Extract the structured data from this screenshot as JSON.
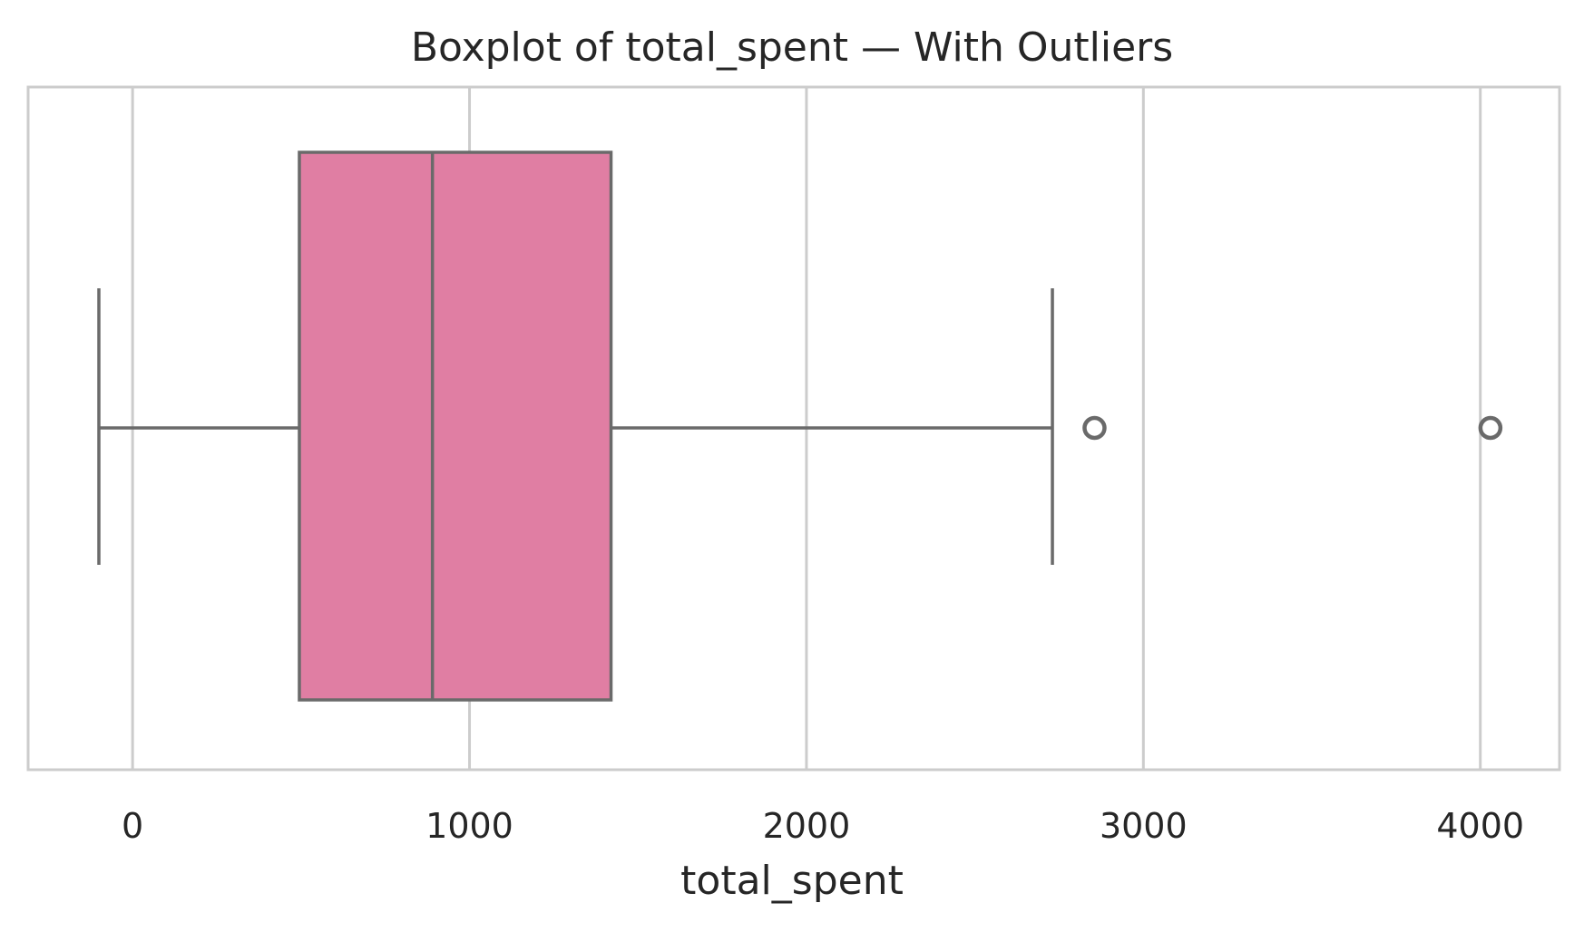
{
  "chart_data": {
    "type": "box",
    "title": "Boxplot of total_spent — With Outliers",
    "xlabel": "total_spent",
    "ylabel": "",
    "xlim": [
      -310,
      4235
    ],
    "xticks": [
      0,
      1000,
      2000,
      3000,
      4000
    ],
    "xtick_labels": [
      "0",
      "1000",
      "2000",
      "3000",
      "4000"
    ],
    "grid": true,
    "grid_axis": "x",
    "legend": "none",
    "orientation": "horizontal",
    "box": {
      "whisker_low": -100,
      "q1": 495,
      "median": 890,
      "q3": 1420,
      "whisker_high": 2730
    },
    "outliers": [
      2855,
      4030
    ],
    "colors": {
      "box_fill": "#e07ea3",
      "line": "#6a6a6a",
      "grid": "#cccccc",
      "frame": "#cccccc",
      "text": "#262626"
    }
  }
}
